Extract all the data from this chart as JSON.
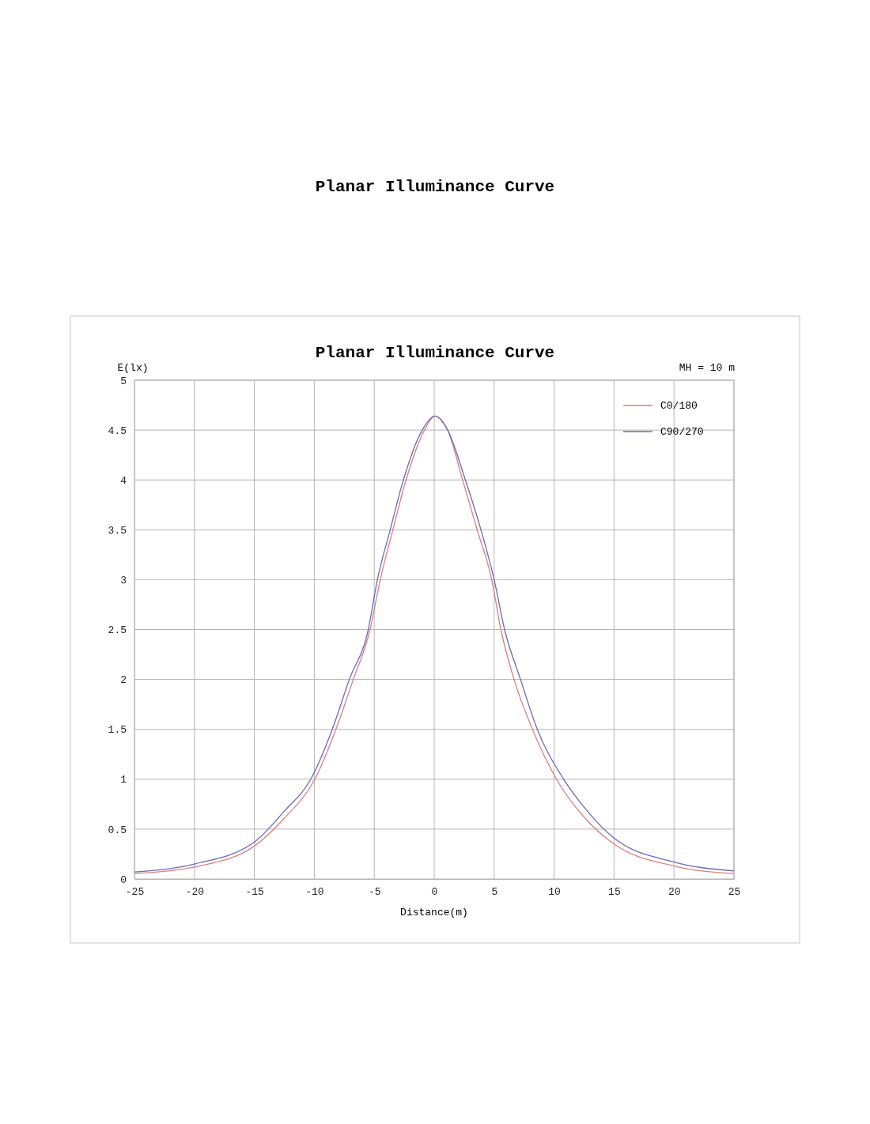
{
  "chart_data": {
    "type": "line",
    "title": "Planar Illuminance Curve",
    "annotations": [
      "Planar Illuminance Curve",
      "MH = 10 m"
    ],
    "xlabel": "Distance(m)",
    "ylabel": "E(lx)",
    "xlim": [
      -25,
      25
    ],
    "xticks": [
      -25,
      -20,
      -15,
      -10,
      -5,
      0,
      5,
      10,
      15,
      20,
      25
    ],
    "ylim": [
      0,
      5
    ],
    "yticks": [
      0,
      0.5,
      1,
      1.5,
      2,
      2.5,
      3,
      3.5,
      4,
      4.5,
      5
    ],
    "grid": true,
    "legend": "top right",
    "line_style": "solid",
    "marker": "none",
    "series": [
      {
        "name": "C0/180",
        "color": "#d98080",
        "x": [
          -25,
          -20,
          -15,
          -12.5,
          -10,
          -8.2,
          -6.75,
          -5.35,
          -4.5,
          -3.45,
          -2.35,
          -0.81,
          0.07,
          1.12,
          2.37,
          3.58,
          4.8,
          5.56,
          6.66,
          8.2,
          10.2,
          12.5,
          15,
          20,
          25
        ],
        "values": [
          0.055,
          0.12,
          0.33,
          0.61,
          0.99,
          1.5,
          2,
          2.5,
          3,
          3.5,
          4,
          4.5,
          4.64,
          4.5,
          4,
          3.5,
          3,
          2.5,
          2,
          1.5,
          1,
          0.62,
          0.35,
          0.13,
          0.055
        ]
      },
      {
        "name": "C90/270",
        "color": "#6a6ab8",
        "x": [
          -25,
          -20,
          -15,
          -12.5,
          -10.3,
          -8.5,
          -7.08,
          -5.5,
          -4.74,
          -3.67,
          -2.57,
          -1.0,
          0.07,
          1.12,
          2.6,
          3.9,
          5.0,
          5.87,
          7.2,
          8.6,
          10.8,
          12.5,
          15,
          20,
          25
        ],
        "values": [
          0.07,
          0.15,
          0.37,
          0.68,
          1,
          1.5,
          2,
          2.5,
          3,
          3.5,
          4,
          4.5,
          4.64,
          4.5,
          4,
          3.5,
          3,
          2.5,
          2,
          1.5,
          1,
          0.72,
          0.41,
          0.17,
          0.08
        ]
      }
    ]
  }
}
